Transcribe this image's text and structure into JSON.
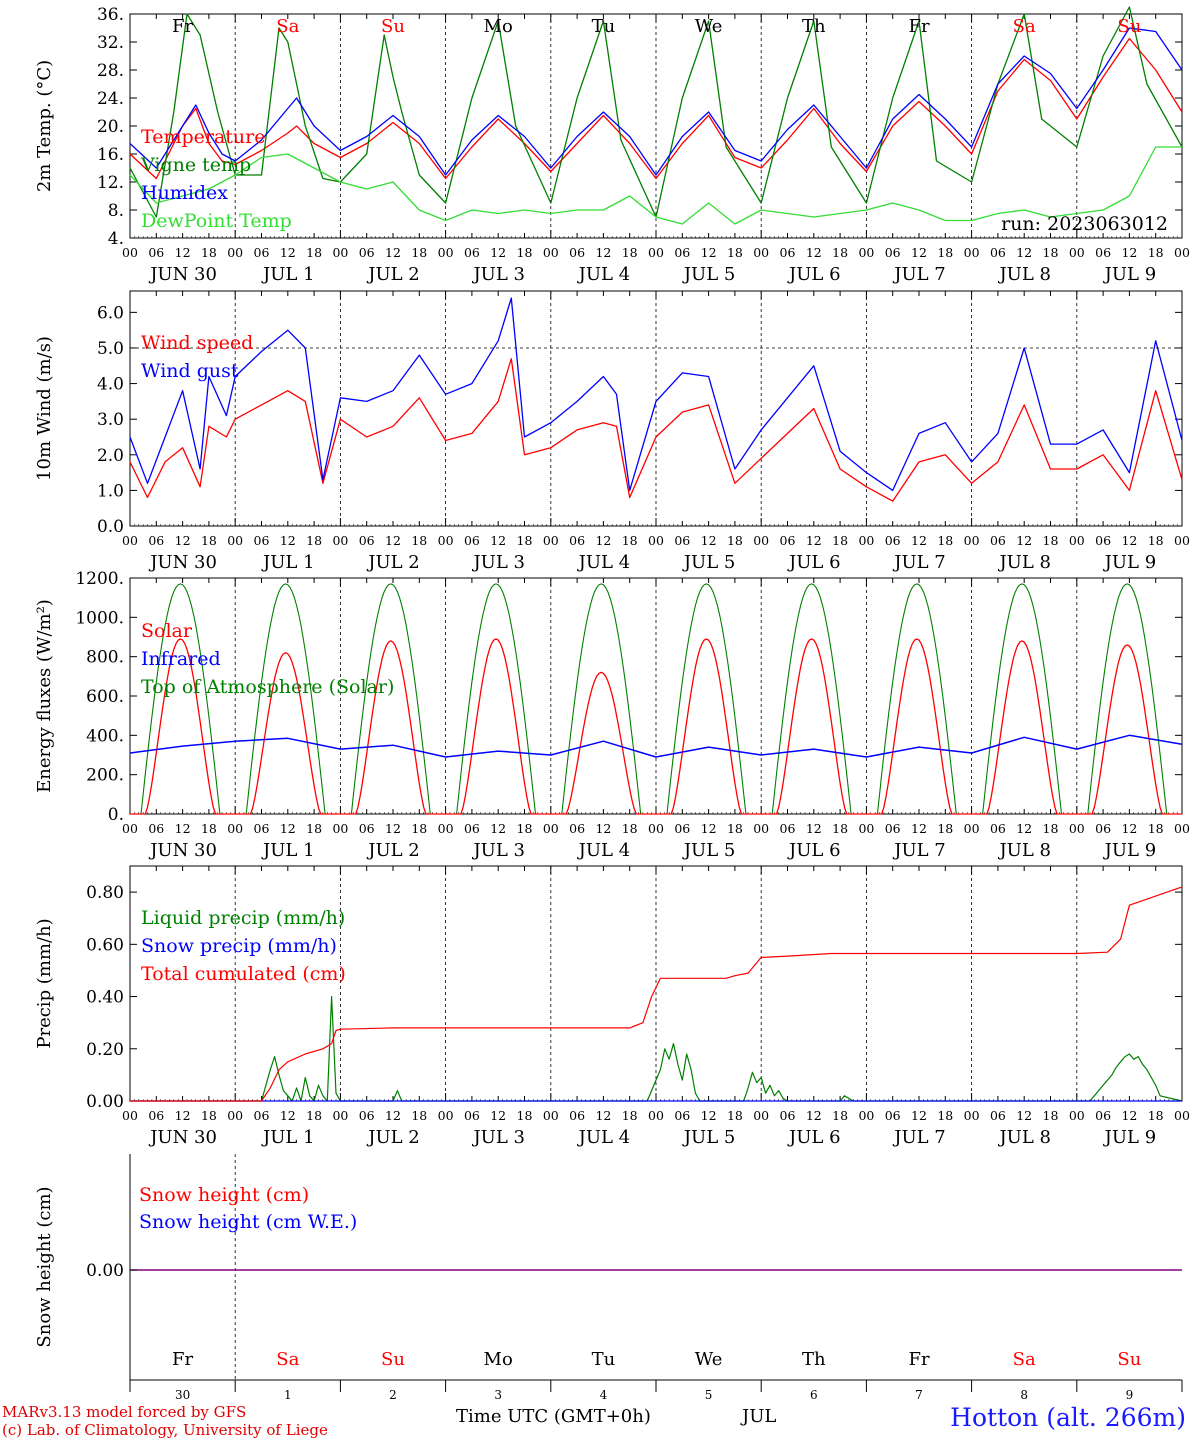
{
  "station_label": "Hotton (alt. 266m)",
  "run_label": "run: 2023063012",
  "footer": {
    "model": "MARv3.13 model forced by GFS",
    "lab": "(c) Lab. of Climatology, University of Liege",
    "time_axis": "Time UTC (GMT+0h)",
    "month": "JUL"
  },
  "hour_ticks": [
    "00",
    "06",
    "12",
    "18"
  ],
  "last_hour_tick": "00",
  "date_labels": [
    "JUN 30",
    "JUL 1",
    "JUL 2",
    "JUL 3",
    "JUL 4",
    "JUL 5",
    "JUL 6",
    "JUL 7",
    "JUL 8",
    "JUL 9"
  ],
  "weekdays": [
    "Fr",
    "Sa",
    "Su",
    "Mo",
    "Tu",
    "We",
    "Th",
    "Fr",
    "Sa",
    "Su"
  ],
  "weekend_flags": [
    false,
    true,
    true,
    false,
    false,
    false,
    false,
    false,
    true,
    true
  ],
  "day_numbers": [
    "30",
    "1",
    "2",
    "3",
    "4",
    "5",
    "6",
    "7",
    "8",
    "9"
  ],
  "colors": {
    "red": "#ff0000",
    "green": "#008000",
    "blue": "#0000ff",
    "lightgreen": "#33dd33",
    "purple": "#800080",
    "weekend": "#ff0000",
    "site": "#1a1aff"
  },
  "chart_data": [
    {
      "type": "line",
      "ylabel": "2m Temp. (°C)",
      "ylim": [
        4,
        36
      ],
      "yticks": [
        "4.",
        "8.",
        "12.",
        "16.",
        "20.",
        "24.",
        "28.",
        "32.",
        "36."
      ],
      "x_unit": "hours since JUN 30 00 UTC",
      "series": [
        {
          "name": "Temperature",
          "color": "red",
          "x": [
            0,
            6,
            12,
            15,
            18,
            21,
            24,
            30,
            36,
            38,
            42,
            48,
            54,
            60,
            66,
            72,
            78,
            84,
            90,
            96,
            102,
            108,
            114,
            120,
            126,
            132,
            138,
            144,
            150,
            156,
            162,
            168,
            174,
            180,
            186,
            192,
            198,
            204,
            210,
            216,
            222,
            228,
            234,
            240
          ],
          "y": [
            16,
            12.5,
            20,
            22.5,
            17.5,
            15,
            14.5,
            16.5,
            19,
            20,
            17.5,
            15.5,
            17.5,
            20.5,
            17.5,
            12.5,
            17,
            21,
            17.5,
            13.5,
            17.5,
            21.5,
            17.5,
            12.5,
            17.5,
            21.5,
            15.5,
            14,
            18,
            22.5,
            17.5,
            13.5,
            20,
            23.5,
            20,
            16,
            25,
            29.5,
            26.5,
            21,
            27,
            32.5,
            28,
            22
          ]
        },
        {
          "name": "Vigne temp",
          "color": "green",
          "x": [
            0,
            6,
            10,
            13,
            16,
            20,
            24,
            30,
            34,
            36,
            38,
            40,
            44,
            48,
            54,
            58,
            60,
            62,
            66,
            72,
            78,
            84,
            88,
            96,
            102,
            108,
            112,
            120,
            126,
            132,
            136,
            144,
            150,
            156,
            160,
            168,
            174,
            180,
            184,
            192,
            198,
            204,
            208,
            216,
            222,
            228,
            232,
            240
          ],
          "y": [
            14,
            7,
            22,
            36,
            33,
            22,
            13,
            13,
            34,
            32,
            26,
            20,
            12.5,
            12,
            16,
            33,
            27,
            22,
            13,
            9,
            24,
            35,
            20,
            9,
            24,
            35,
            18,
            7,
            24,
            35,
            17,
            9,
            24,
            35,
            17,
            9,
            24,
            35,
            15,
            12,
            26,
            36,
            21,
            17,
            30,
            37,
            26,
            17
          ]
        },
        {
          "name": "Humidex",
          "color": "blue",
          "x": [
            0,
            6,
            12,
            15,
            18,
            21,
            24,
            30,
            36,
            38,
            42,
            48,
            54,
            60,
            66,
            72,
            78,
            84,
            90,
            96,
            102,
            108,
            114,
            120,
            126,
            132,
            138,
            144,
            150,
            156,
            162,
            168,
            174,
            180,
            186,
            192,
            198,
            204,
            210,
            216,
            222,
            228,
            234,
            240
          ],
          "y": [
            17.5,
            14,
            20,
            23,
            19,
            16,
            15,
            18,
            22.5,
            24,
            20,
            16.5,
            18.5,
            21.5,
            18.5,
            13,
            18,
            21.5,
            18.5,
            14,
            18.5,
            22,
            18.5,
            13,
            18.5,
            22,
            16.5,
            15,
            19.5,
            23,
            18.5,
            14,
            21,
            24.5,
            21,
            17,
            26,
            30,
            27.5,
            22.5,
            28,
            34,
            33.5,
            28
          ]
        },
        {
          "name": "DewPoint Temp",
          "color": "lightgreen",
          "x": [
            0,
            6,
            12,
            18,
            24,
            30,
            36,
            42,
            48,
            54,
            60,
            66,
            72,
            78,
            84,
            90,
            96,
            102,
            108,
            114,
            120,
            126,
            132,
            138,
            144,
            150,
            156,
            162,
            168,
            174,
            180,
            186,
            192,
            198,
            204,
            210,
            216,
            222,
            228,
            234,
            240
          ],
          "y": [
            13,
            9,
            10,
            11,
            13,
            15.5,
            16,
            14,
            12,
            11,
            12,
            8,
            6.5,
            8,
            7.5,
            8,
            7.5,
            8,
            8,
            10,
            7,
            6,
            9,
            6,
            8,
            7.5,
            7,
            7.5,
            8,
            9,
            8,
            6.5,
            6.5,
            7.5,
            8,
            7,
            7.5,
            8,
            10,
            17,
            17
          ]
        }
      ]
    },
    {
      "type": "line",
      "ylabel": "10m Wind (m/s)",
      "ylim": [
        0,
        6.6
      ],
      "yticks": [
        "0.0",
        "1.0",
        "2.0",
        "3.0",
        "4.0",
        "5.0",
        "6.0"
      ],
      "dashed_reference": 5.0,
      "x_unit": "hours since JUN 30 00 UTC",
      "series": [
        {
          "name": "Wind speed",
          "color": "red",
          "x": [
            0,
            4,
            8,
            12,
            16,
            18,
            22,
            24,
            30,
            36,
            40,
            44,
            48,
            54,
            60,
            66,
            72,
            78,
            84,
            87,
            90,
            96,
            102,
            108,
            111,
            114,
            120,
            126,
            132,
            138,
            144,
            150,
            156,
            162,
            168,
            174,
            180,
            186,
            192,
            198,
            204,
            210,
            216,
            222,
            228,
            234,
            240
          ],
          "y": [
            1.8,
            0.8,
            1.8,
            2.2,
            1.1,
            2.8,
            2.5,
            3,
            3.4,
            3.8,
            3.5,
            1.2,
            3,
            2.5,
            2.8,
            3.6,
            2.4,
            2.6,
            3.5,
            4.7,
            2,
            2.2,
            2.7,
            2.9,
            2.8,
            0.8,
            2.5,
            3.2,
            3.4,
            1.2,
            1.9,
            2.6,
            3.3,
            1.6,
            1.1,
            0.7,
            1.8,
            2.0,
            1.2,
            1.8,
            3.4,
            1.6,
            1.6,
            2.0,
            1.0,
            3.8,
            1.3
          ]
        },
        {
          "name": "Wind gust",
          "color": "blue",
          "x": [
            0,
            4,
            8,
            12,
            16,
            18,
            22,
            24,
            30,
            36,
            40,
            44,
            48,
            54,
            60,
            66,
            72,
            78,
            84,
            87,
            90,
            96,
            102,
            108,
            111,
            114,
            120,
            126,
            132,
            138,
            144,
            150,
            156,
            162,
            168,
            174,
            180,
            186,
            192,
            198,
            204,
            210,
            216,
            222,
            228,
            234,
            240
          ],
          "y": [
            2.5,
            1.2,
            2.5,
            3.8,
            1.6,
            4.2,
            3.1,
            4.2,
            4.9,
            5.5,
            5.0,
            1.3,
            3.6,
            3.5,
            3.8,
            4.8,
            3.7,
            4.0,
            5.2,
            6.4,
            2.5,
            2.9,
            3.5,
            4.2,
            3.7,
            1.0,
            3.5,
            4.3,
            4.2,
            1.6,
            2.7,
            3.6,
            4.5,
            2.1,
            1.5,
            1.0,
            2.6,
            2.9,
            1.8,
            2.6,
            5.0,
            2.3,
            2.3,
            2.7,
            1.5,
            5.2,
            2.4
          ]
        }
      ]
    },
    {
      "type": "line",
      "ylabel": "Energy fluxes (W/m²)",
      "ylim": [
        0,
        1200
      ],
      "yticks": [
        "0.",
        "200.",
        "400.",
        "600.",
        "800.",
        "1000.",
        "1200."
      ],
      "x_unit": "hours since JUN 30 00 UTC",
      "solar_daily_peak": [
        890,
        820,
        880,
        890,
        720,
        890,
        890,
        890,
        880,
        860
      ],
      "toa_daily_peak": 1170,
      "series": [
        {
          "name": "Solar",
          "color": "red"
        },
        {
          "name": "Infrared",
          "color": "blue",
          "x": [
            0,
            12,
            24,
            36,
            48,
            60,
            72,
            84,
            96,
            108,
            120,
            132,
            144,
            156,
            168,
            180,
            192,
            204,
            216,
            228,
            240
          ],
          "y": [
            310,
            345,
            370,
            385,
            330,
            350,
            290,
            320,
            300,
            370,
            290,
            340,
            300,
            330,
            290,
            340,
            310,
            390,
            330,
            400,
            355
          ]
        },
        {
          "name": "Top of Atmosphere (Solar)",
          "color": "green"
        }
      ]
    },
    {
      "type": "line",
      "ylabel": "Precip (mm/h)",
      "ylim": [
        0,
        0.9
      ],
      "yticks": [
        "0.00",
        "0.20",
        "0.40",
        "0.60",
        "0.80"
      ],
      "x_unit": "hours since JUN 30 00 UTC",
      "series": [
        {
          "name": "Liquid precip (mm/h)",
          "color": "green",
          "x": [
            0,
            30,
            31,
            32,
            33,
            34,
            35,
            36,
            37,
            38,
            39,
            40,
            41,
            42,
            43,
            44,
            45,
            46,
            47,
            48,
            60,
            61,
            62,
            118,
            119,
            120,
            121,
            122,
            123,
            124,
            125,
            126,
            127,
            128,
            129,
            130,
            140,
            141,
            142,
            143,
            144,
            145,
            146,
            147,
            148,
            149,
            150,
            162,
            163,
            164,
            165,
            219,
            220,
            221,
            222,
            223,
            224,
            225,
            226,
            227,
            228,
            229,
            230,
            231,
            232,
            233,
            234,
            235,
            240
          ],
          "y": [
            0,
            0,
            0.06,
            0.12,
            0.17,
            0.1,
            0.04,
            0.02,
            0,
            0.05,
            0,
            0.09,
            0.02,
            0,
            0.06,
            0.02,
            0,
            0.4,
            0.03,
            0,
            0,
            0.04,
            0,
            0,
            0.04,
            0.08,
            0.12,
            0.2,
            0.16,
            0.22,
            0.14,
            0.08,
            0.18,
            0.12,
            0.03,
            0,
            0,
            0.05,
            0.11,
            0.07,
            0.09,
            0.03,
            0.06,
            0.02,
            0.04,
            0.01,
            0,
            0,
            0.02,
            0.01,
            0,
            0,
            0.02,
            0.04,
            0.06,
            0.08,
            0.1,
            0.13,
            0.15,
            0.17,
            0.18,
            0.16,
            0.17,
            0.14,
            0.12,
            0.09,
            0.06,
            0.02,
            0
          ]
        },
        {
          "name": "Snow precip (mm/h)",
          "color": "blue",
          "x": [
            0,
            240
          ],
          "y": [
            0,
            0
          ]
        },
        {
          "name": "Total cumulated (cm)",
          "color": "red",
          "x": [
            0,
            30,
            32,
            34,
            36,
            40,
            44,
            46,
            47,
            48,
            60,
            72,
            96,
            114,
            117,
            119,
            121,
            130,
            136,
            138,
            141,
            144,
            150,
            160,
            168,
            192,
            216,
            223,
            226,
            228,
            240
          ],
          "y": [
            0,
            0,
            0.05,
            0.12,
            0.15,
            0.18,
            0.2,
            0.22,
            0.27,
            0.275,
            0.28,
            0.28,
            0.28,
            0.28,
            0.3,
            0.4,
            0.47,
            0.47,
            0.47,
            0.48,
            0.49,
            0.55,
            0.555,
            0.565,
            0.565,
            0.565,
            0.565,
            0.57,
            0.62,
            0.75,
            0.82
          ]
        }
      ]
    },
    {
      "type": "line",
      "ylabel": "Snow height (cm)",
      "ytick": "0.00",
      "x_unit": "hours since JUN 30 00 UTC",
      "series": [
        {
          "name": "Snow height (cm)",
          "color": "red",
          "x": [
            0,
            240
          ],
          "y": [
            0,
            0
          ]
        },
        {
          "name": "Snow height (cm W.E.)",
          "color": "blue",
          "x": [
            0,
            240
          ],
          "y": [
            0,
            0
          ]
        }
      ]
    }
  ]
}
